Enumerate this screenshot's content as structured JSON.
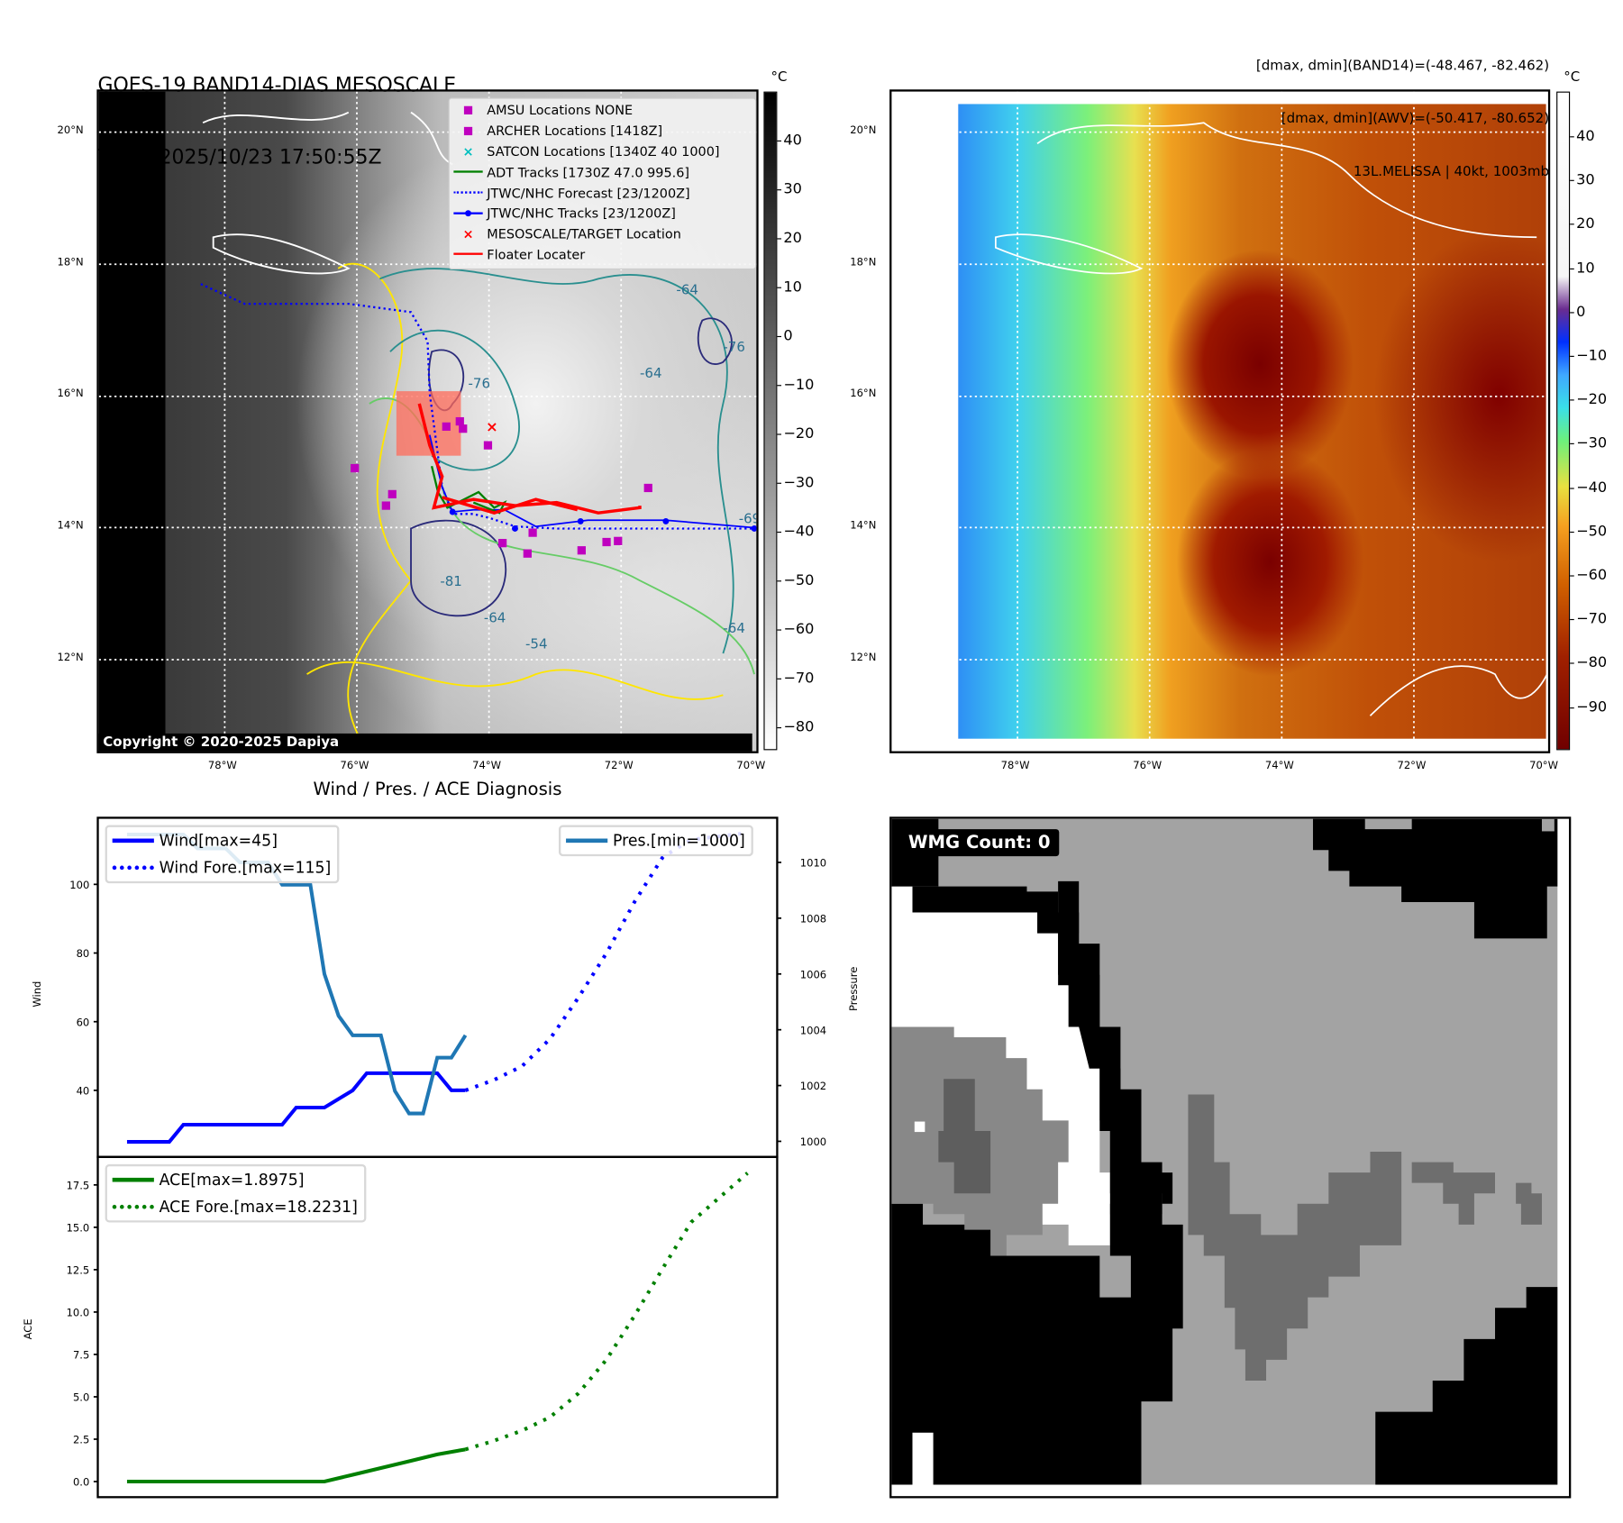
{
  "header": {
    "title_line1": "GOES-19 BAND14-DIAS MESOSCALE",
    "title_line2": "Time: 2025/10/23 17:50:55Z",
    "info_line1": "[dmax, dmin](BAND14)=(-48.467, -82.462)",
    "info_line2": "[dmax, dmin](AWV)=(-50.417, -80.652)",
    "info_line3": "13L.MELISSA | 40kt, 1003mb"
  },
  "maps": {
    "lat_labels": [
      "20°N",
      "18°N",
      "16°N",
      "14°N",
      "12°N"
    ],
    "lon_labels": [
      "78°W",
      "76°W",
      "74°W",
      "72°W",
      "70°W"
    ],
    "unit": "°C",
    "left_colorbar_ticks": [
      "40",
      "30",
      "20",
      "10",
      "0",
      "−10",
      "−20",
      "−30",
      "−40",
      "−50",
      "−60",
      "−70",
      "−80"
    ],
    "right_colorbar_ticks": [
      "40",
      "30",
      "20",
      "10",
      "0",
      "−10",
      "−20",
      "−30",
      "−40",
      "−50",
      "−60",
      "−70",
      "−80",
      "−90"
    ],
    "copyright": "Copyright © 2020-2025 Dapiya",
    "contour_labels": [
      "-64",
      "-76",
      "-76",
      "-64",
      "-81",
      "-64",
      "-54",
      "-64",
      "-69"
    ],
    "legend": [
      {
        "label": "AMSU Locations NONE",
        "color": "#bf00bf",
        "marker": "square"
      },
      {
        "label": "ARCHER Locations [1418Z]",
        "color": "#bf00bf",
        "marker": "square"
      },
      {
        "label": "SATCON Locations [1340Z 40 1000]",
        "color": "#00bfbf",
        "marker": "x"
      },
      {
        "label": "ADT Tracks [1730Z 47.0 995.6]",
        "color": "#008000",
        "marker": "line"
      },
      {
        "label": "JTWC/NHC Forecast [23/1200Z]",
        "color": "#0000ff",
        "marker": "dotted"
      },
      {
        "label": "JTWC/NHC Tracks [23/1200Z]",
        "color": "#0000ff",
        "marker": "line-dot"
      },
      {
        "label": "MESOSCALE/TARGET Location",
        "color": "#ff0000",
        "marker": "x"
      },
      {
        "label": "Floater Locater",
        "color": "#ff0000",
        "marker": "line"
      }
    ]
  },
  "wmg": {
    "label": "WMG Count: 0"
  },
  "chart_data": [
    {
      "type": "line",
      "title": "Wind / Pres. / ACE Diagnosis",
      "ylabel": "Wind",
      "y2label": "Pressure",
      "xlim": [
        -2.07,
        46.1
      ],
      "ylim": [
        20.6,
        119.4
      ],
      "y2lim": [
        999.44,
        1011.6
      ],
      "yticks": [
        "40",
        "60",
        "80",
        "100"
      ],
      "y2ticks": [
        "1000",
        "1002",
        "1004",
        "1006",
        "1008",
        "1010"
      ],
      "series": [
        {
          "name": "Wind[max=45]",
          "color": "#0000ff",
          "style": "solid",
          "axis": "left",
          "points": [
            [
              0,
              25
            ],
            [
              3,
              25
            ],
            [
              4,
              30
            ],
            [
              11,
              30
            ],
            [
              12,
              35
            ],
            [
              14,
              35
            ],
            [
              16,
              40
            ],
            [
              17,
              45
            ],
            [
              22,
              45
            ],
            [
              23,
              40
            ],
            [
              24,
              40
            ]
          ]
        },
        {
          "name": "Wind Fore.[max=115]",
          "color": "#0000ff",
          "style": "dotted",
          "axis": "left",
          "points": [
            [
              24,
              40
            ],
            [
              26,
              43
            ],
            [
              28,
              47
            ],
            [
              30,
              55
            ],
            [
              32,
              67
            ],
            [
              34,
              80
            ],
            [
              36,
              95
            ],
            [
              38,
              108
            ],
            [
              40,
              113
            ],
            [
              44,
              115
            ]
          ]
        },
        {
          "name": "Pres.[min=1000]",
          "color": "#1f77b4",
          "style": "solid",
          "axis": "right",
          "points": [
            [
              0,
              1011
            ],
            [
              4,
              1011
            ],
            [
              5,
              1010.5
            ],
            [
              7,
              1010.5
            ],
            [
              8,
              1010
            ],
            [
              10,
              1010
            ],
            [
              11,
              1009.2
            ],
            [
              13,
              1009.2
            ],
            [
              14,
              1006
            ],
            [
              15,
              1004.5
            ],
            [
              16,
              1003.8
            ],
            [
              18,
              1003.8
            ],
            [
              19,
              1001.8
            ],
            [
              20,
              1001
            ],
            [
              21,
              1001
            ],
            [
              22,
              1003
            ],
            [
              23,
              1003
            ],
            [
              24,
              1003.8
            ]
          ]
        }
      ],
      "legend_left": [
        "Wind[max=45]",
        "Wind Fore.[max=115]"
      ],
      "legend_right": [
        "Pres.[min=1000]"
      ]
    },
    {
      "type": "line",
      "ylabel": "ACE",
      "xlim": [
        -2.07,
        46.1
      ],
      "ylim": [
        -0.92,
        19.15
      ],
      "yticks": [
        "0.0",
        "2.5",
        "5.0",
        "7.5",
        "10.0",
        "12.5",
        "15.0",
        "17.5"
      ],
      "series": [
        {
          "name": "ACE[max=1.8975]",
          "color": "#008000",
          "style": "solid",
          "points": [
            [
              0,
              0
            ],
            [
              14,
              0
            ],
            [
              16,
              0.4
            ],
            [
              18,
              0.8
            ],
            [
              20,
              1.2
            ],
            [
              22,
              1.6
            ],
            [
              24,
              1.9
            ]
          ]
        },
        {
          "name": "ACE Fore.[max=18.2231]",
          "color": "#008000",
          "style": "dotted",
          "points": [
            [
              24,
              1.9
            ],
            [
              26,
              2.4
            ],
            [
              28,
              3.0
            ],
            [
              30,
              3.8
            ],
            [
              32,
              5.2
            ],
            [
              34,
              7.2
            ],
            [
              36,
              9.8
            ],
            [
              38,
              12.6
            ],
            [
              40,
              15.3
            ],
            [
              44,
              18.2
            ]
          ]
        }
      ]
    }
  ]
}
